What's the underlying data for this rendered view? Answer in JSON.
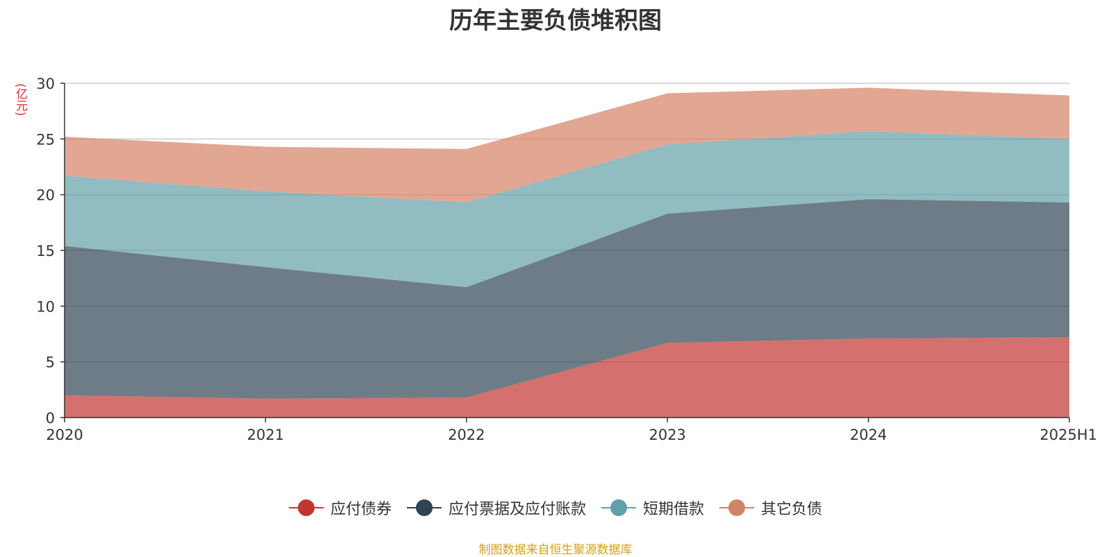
{
  "chart_data": {
    "type": "area",
    "stacked": true,
    "title": "历年主要负债堆积图",
    "ylabel": "(亿元)",
    "xlabel": "",
    "categories": [
      "2020",
      "2021",
      "2022",
      "2023",
      "2024",
      "2025H1"
    ],
    "ylim": [
      0,
      30
    ],
    "yticks": [
      "0",
      "5",
      "10",
      "15",
      "20",
      "25",
      "30"
    ],
    "grid": true,
    "legend_position": "bottom",
    "series": [
      {
        "name": "应付债券",
        "color": "#c23531",
        "values": [
          2.0,
          1.7,
          1.8,
          6.7,
          7.1,
          7.2
        ]
      },
      {
        "name": "应付票据及应付账款",
        "color": "#2f4554",
        "values": [
          13.4,
          11.8,
          9.9,
          11.6,
          12.5,
          12.1
        ]
      },
      {
        "name": "短期借款",
        "color": "#61a0a8",
        "values": [
          6.3,
          6.8,
          7.6,
          6.2,
          6.1,
          5.7
        ]
      },
      {
        "name": "其它负债",
        "color": "#d48265",
        "values": [
          3.5,
          4.0,
          4.8,
          4.6,
          3.9,
          3.9
        ]
      }
    ]
  },
  "source_note": "制图数据来自恒生聚源数据库"
}
